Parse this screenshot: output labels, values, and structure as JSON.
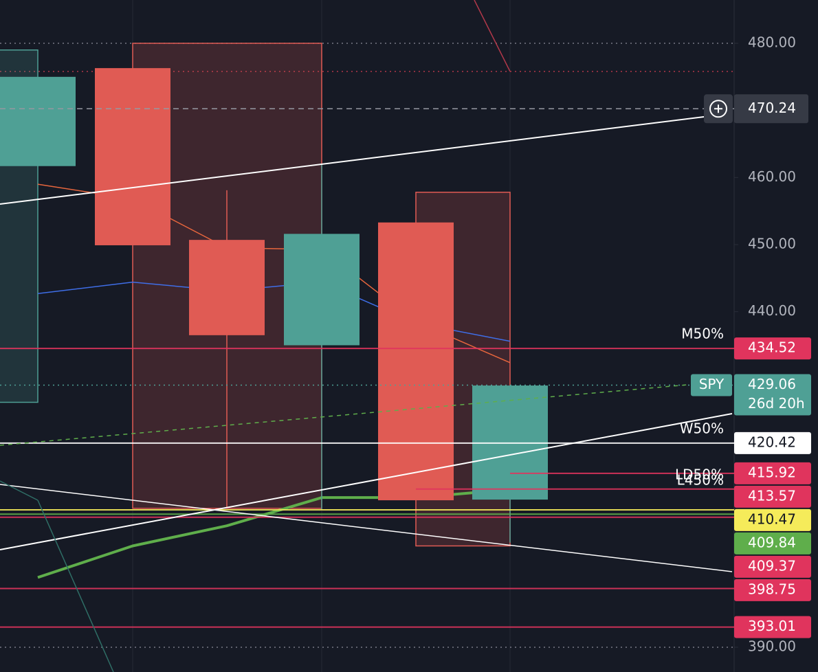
{
  "chart_data": {
    "type": "candlestick",
    "ylim": [
      386.31,
      486.45
    ],
    "yticks": [
      {
        "value": 480,
        "label": "480.00"
      },
      {
        "value": 460,
        "label": "460.00"
      },
      {
        "value": 450,
        "label": "450.00"
      },
      {
        "value": 440,
        "label": "440.00"
      },
      {
        "value": 390,
        "label": "390.00"
      }
    ],
    "up_color": "#4fa095",
    "down_color": "#e05b54",
    "open": [
      461.7,
      476.3,
      450.7,
      435.0,
      453.3,
      412.0
    ],
    "high": [
      475.0,
      476.3,
      458.1,
      462.0,
      453.3,
      429.0
    ],
    "low": [
      461.7,
      449.9,
      410.7,
      410.5,
      411.9,
      405.6
    ],
    "close": [
      475.0,
      449.9,
      436.5,
      451.6,
      411.9,
      429.0
    ],
    "boxes": [
      {
        "top": 479.0,
        "bottom": 426.5,
        "color": "#4fa095"
      },
      {
        "top": 480.0,
        "bottom": 410.7,
        "color": "#e05b54"
      },
      {
        "top": 457.8,
        "bottom": 405.1,
        "color": "#e05b54"
      }
    ],
    "series": [
      {
        "color": "#e8663d",
        "values": [
          459.0,
          456.8,
          449.5,
          449.3,
          438.5,
          432.4
        ]
      },
      {
        "color": "#3f6ee8",
        "values": [
          442.7,
          444.4,
          443.1,
          444.4,
          438.3,
          435.6
        ]
      },
      {
        "color": "#5fae4b",
        "values": [
          400.4,
          405.1,
          408.1,
          412.3,
          412.3,
          413.5
        ]
      }
    ],
    "guides": [
      {
        "value": 480,
        "color": "#787b86"
      },
      {
        "value": 475.8,
        "color": "#b2384a"
      },
      {
        "value": 390,
        "color": "#787b86"
      }
    ],
    "crosshair": {
      "value": 470.24,
      "color": "#363a45"
    },
    "levels": [
      {
        "value": 434.52,
        "tags": [
          "M50%"
        ],
        "color": "#e0345d",
        "text_color": "#ffffff"
      },
      {
        "value": 429.06,
        "tags": [
          "SPY"
        ],
        "countdown": "26d 20h",
        "color": "#4fa095",
        "text_color": "#ffffff",
        "line_style": "dotted"
      },
      {
        "value": 420.42,
        "tags": [
          "W50%"
        ],
        "color": "#ffffff",
        "text_color": "#131722"
      },
      {
        "value": 415.92,
        "color": "#e0345d",
        "text_color": "#ffffff"
      },
      {
        "value": 413.57,
        "tags": [
          "LD50%",
          "L450%"
        ],
        "color": "#e0345d",
        "text_color": "#ffffff"
      },
      {
        "value": 410.47,
        "color": "#f5eb5a",
        "text_color": "#131722"
      },
      {
        "value": 409.84,
        "color": "#5fae4b",
        "text_color": "#ffffff"
      },
      {
        "value": 409.37,
        "color": "#e0345d",
        "text_color": "#ffffff"
      },
      {
        "value": 398.75,
        "color": "#e0345d",
        "text_color": "#ffffff"
      },
      {
        "value": 393.01,
        "color": "#e0345d",
        "text_color": "#ffffff"
      }
    ]
  }
}
